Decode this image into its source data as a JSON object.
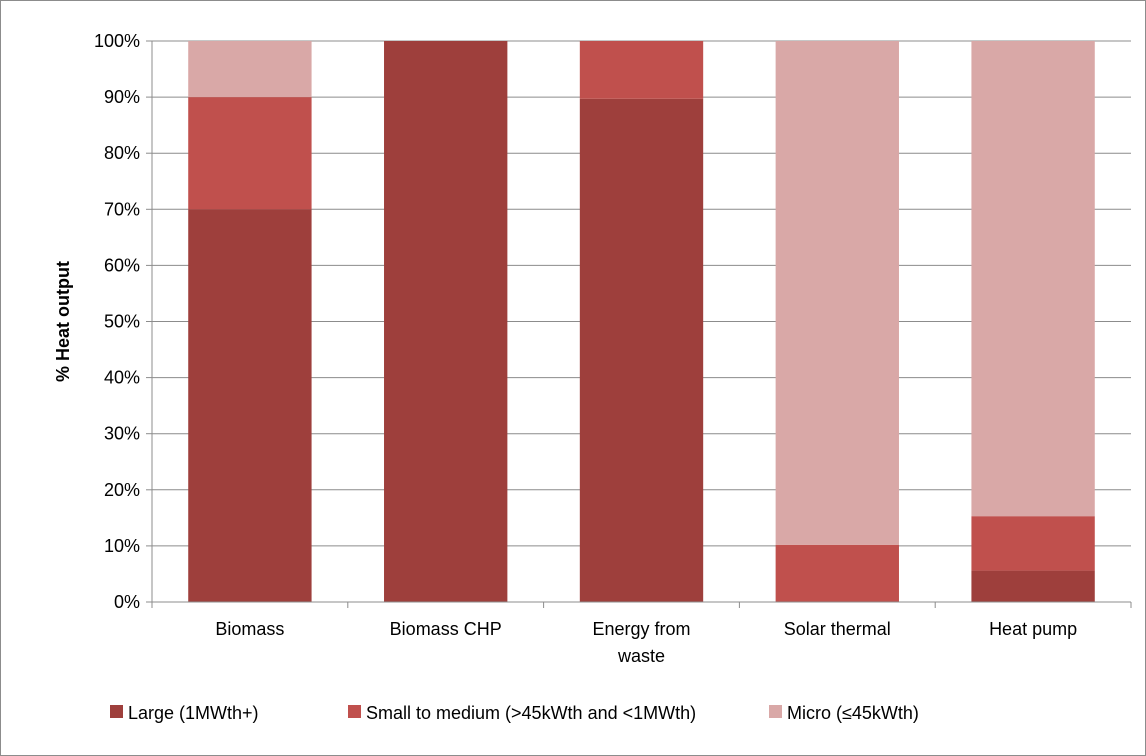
{
  "chart_data": {
    "type": "bar",
    "stacked": true,
    "title": "",
    "xlabel": "",
    "ylabel": "% Heat output",
    "ylim": [
      0,
      100
    ],
    "yticks": [
      "0%",
      "10%",
      "20%",
      "30%",
      "40%",
      "50%",
      "60%",
      "70%",
      "80%",
      "90%",
      "100%"
    ],
    "grid": true,
    "legend_position": "bottom",
    "categories": [
      [
        "Biomass"
      ],
      [
        "Biomass CHP"
      ],
      [
        "Energy from",
        "waste"
      ],
      [
        "Solar thermal"
      ],
      [
        "Heat pump"
      ]
    ],
    "series": [
      {
        "name": "Large (1MWth+)",
        "color": "#9e3f3c",
        "values": [
          70,
          100,
          89.7,
          0,
          5.6
        ]
      },
      {
        "name": "Small to medium (>45kWth and <1MWth)",
        "color": "#c0504d",
        "values": [
          20,
          0,
          10.3,
          10.2,
          9.7
        ]
      },
      {
        "name": "Micro (≤45kWth)",
        "color": "#d9a8a7",
        "values": [
          10,
          0,
          0,
          89.8,
          84.7
        ]
      }
    ]
  }
}
